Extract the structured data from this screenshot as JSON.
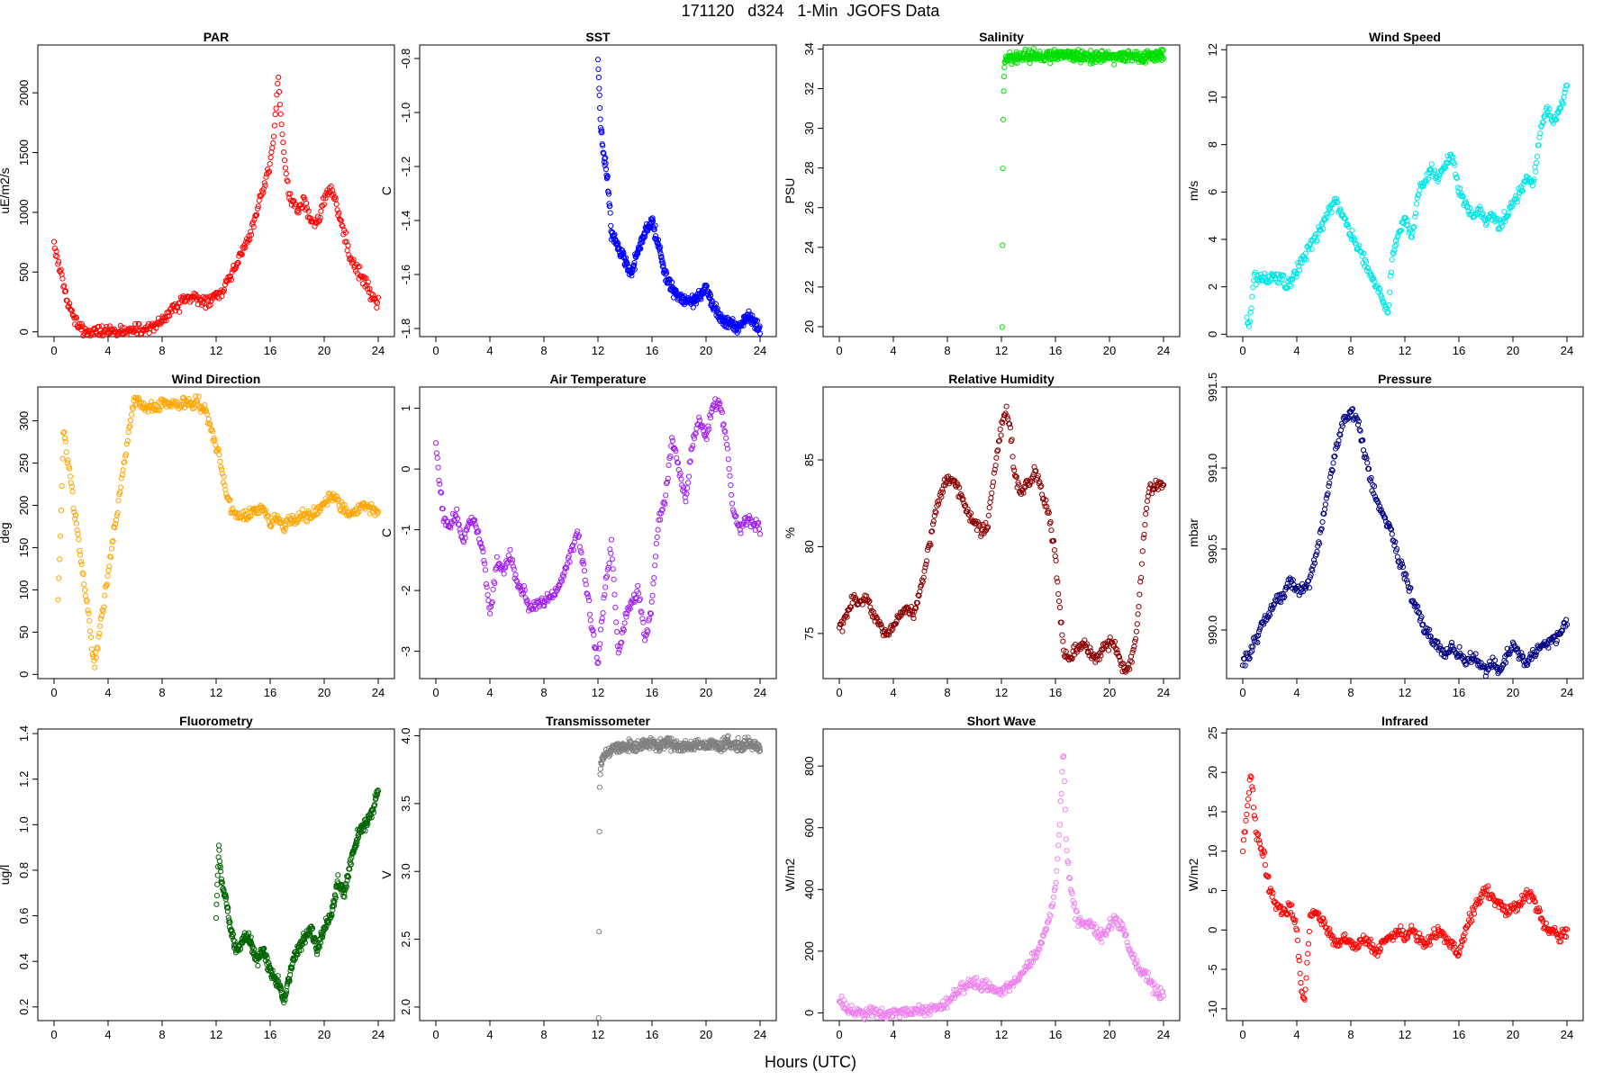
{
  "figure": {
    "title": "171120   d324   1-Min  JGOFS Data",
    "xlabel": "Hours (UTC)"
  },
  "chart_data": [
    {
      "type": "scatter",
      "title": "PAR",
      "ylabel": "uE/m2/s",
      "xlim": [
        0,
        24
      ],
      "ylim": [
        -40,
        2400
      ],
      "xticks": [
        0,
        4,
        8,
        12,
        16,
        20,
        24
      ],
      "yticks": [
        0,
        500,
        1000,
        1500,
        2000
      ],
      "color": "#ff0000",
      "x": [
        0,
        0.3,
        0.6,
        1,
        1.5,
        2,
        3,
        4,
        5,
        6,
        6.5,
        7,
        7.5,
        8,
        8.5,
        9,
        9.5,
        10,
        10.5,
        11,
        11.5,
        12,
        12.5,
        13,
        13.5,
        14,
        14.5,
        15,
        15.5,
        16,
        16.3,
        16.6,
        16.8,
        17,
        17.2,
        17.5,
        18,
        18.5,
        19,
        19.5,
        20,
        20.5,
        21,
        21.5,
        22,
        22.5,
        23,
        23.5,
        24
      ],
      "y": [
        720,
        600,
        450,
        250,
        100,
        30,
        5,
        5,
        5,
        10,
        20,
        40,
        60,
        80,
        150,
        200,
        250,
        300,
        280,
        250,
        260,
        300,
        350,
        450,
        550,
        700,
        800,
        1000,
        1200,
        1400,
        1700,
        2100,
        1800,
        1500,
        1300,
        1100,
        1000,
        1100,
        950,
        900,
        1100,
        1200,
        1000,
        800,
        600,
        500,
        450,
        300,
        250
      ]
    },
    {
      "type": "scatter",
      "title": "SST",
      "ylabel": "C",
      "xlim": [
        0,
        24
      ],
      "ylim": [
        -1.83,
        -0.75
      ],
      "xticks": [
        0,
        4,
        8,
        12,
        16,
        20,
        24
      ],
      "yticks": [
        -0.8,
        -1.0,
        -1.2,
        -1.4,
        -1.6,
        -1.8
      ],
      "color": "#0000ff",
      "x": [
        12,
        12.2,
        12.4,
        12.6,
        12.8,
        13,
        13.5,
        14,
        14.5,
        15,
        15.5,
        16,
        16.5,
        17,
        17.5,
        18,
        18.5,
        19,
        19.5,
        20,
        20.5,
        21,
        21.5,
        22,
        22.5,
        23,
        23.5,
        24
      ],
      "y": [
        -0.8,
        -1.05,
        -1.15,
        -1.2,
        -1.3,
        -1.45,
        -1.5,
        -1.55,
        -1.6,
        -1.5,
        -1.45,
        -1.4,
        -1.5,
        -1.6,
        -1.65,
        -1.68,
        -1.7,
        -1.7,
        -1.68,
        -1.65,
        -1.72,
        -1.75,
        -1.78,
        -1.78,
        -1.8,
        -1.75,
        -1.77,
        -1.8
      ]
    },
    {
      "type": "scatter",
      "title": "Salinity",
      "ylabel": "PSU",
      "xlim": [
        0,
        24
      ],
      "ylim": [
        19.5,
        34.2
      ],
      "xticks": [
        0,
        4,
        8,
        12,
        16,
        20,
        24
      ],
      "yticks": [
        20,
        22,
        24,
        26,
        28,
        30,
        32,
        34
      ],
      "color": "#00e000",
      "x": [
        12.05,
        12.1,
        12.15,
        12.2,
        12.3,
        12.5,
        13,
        14,
        15,
        16,
        17,
        18,
        19,
        20,
        21,
        22,
        23,
        24
      ],
      "y": [
        20,
        27.4,
        31.6,
        33.0,
        33.5,
        33.6,
        33.62,
        33.65,
        33.66,
        33.68,
        33.7,
        33.65,
        33.62,
        33.62,
        33.63,
        33.64,
        33.65,
        33.65
      ]
    },
    {
      "type": "scatter",
      "title": "Wind Speed",
      "ylabel": "m/s",
      "xlim": [
        0,
        24
      ],
      "ylim": [
        -0.1,
        12.2
      ],
      "xticks": [
        0,
        4,
        8,
        12,
        16,
        20,
        24
      ],
      "yticks": [
        0,
        2,
        4,
        6,
        8,
        10,
        12
      ],
      "color": "#00e5e5",
      "x": [
        0.3,
        0.5,
        0.8,
        3,
        3.2,
        6,
        6.8,
        10.8,
        11,
        11.3,
        12,
        12.5,
        13,
        13.5,
        14,
        14.5,
        15,
        15.5,
        16,
        16.5,
        17,
        17.5,
        18,
        18.5,
        19,
        19.5,
        20,
        20.5,
        21,
        21.5,
        22,
        22.5,
        23,
        23.5,
        24
      ],
      "y": [
        0.7,
        0.4,
        2.3,
        2.4,
        1.9,
        4.7,
        5.7,
        0.9,
        3.0,
        3.8,
        5.0,
        4.0,
        6.0,
        6.5,
        7.0,
        6.5,
        7.2,
        7.5,
        6.0,
        5.5,
        5.0,
        5.2,
        4.8,
        5.0,
        4.5,
        5.0,
        5.5,
        6.0,
        6.5,
        6.2,
        8.5,
        9.5,
        9.0,
        9.5,
        10.5
      ]
    },
    {
      "type": "scatter",
      "title": "Wind Direction",
      "ylabel": "deg",
      "xlim": [
        0,
        24
      ],
      "ylim": [
        -5,
        340
      ],
      "xticks": [
        0,
        4,
        8,
        12,
        16,
        20,
        24
      ],
      "yticks": [
        0,
        50,
        100,
        150,
        200,
        250,
        300
      ],
      "color": "#ffa500",
      "x": [
        0.3,
        0.5,
        0.7,
        2.8,
        3.0,
        5.9,
        6.8,
        10.7,
        10.9,
        11.1,
        12,
        12.2,
        12.5,
        13,
        13.5,
        14,
        14.5,
        15,
        15.5,
        16,
        16.5,
        17,
        17.5,
        18,
        18.5,
        19,
        19.5,
        20,
        20.5,
        21,
        21.5,
        22,
        22.5,
        23,
        23.5,
        24
      ],
      "y": [
        87,
        178,
        293,
        37,
        10,
        327,
        316,
        323,
        310,
        318,
        270,
        265,
        230,
        200,
        190,
        185,
        190,
        195,
        200,
        180,
        185,
        175,
        180,
        185,
        190,
        185,
        195,
        200,
        210,
        205,
        195,
        190,
        195,
        200,
        195,
        190
      ]
    },
    {
      "type": "scatter",
      "title": "Air Temperature",
      "ylabel": "C",
      "xlim": [
        0,
        24
      ],
      "ylim": [
        -3.45,
        1.35
      ],
      "xticks": [
        0,
        4,
        8,
        12,
        16,
        20,
        24
      ],
      "yticks": [
        1,
        0,
        -1,
        -2,
        -3
      ],
      "color": "#a020f0",
      "x": [
        0,
        0.3,
        0.6,
        1,
        1.5,
        2,
        2.5,
        3,
        3.5,
        4,
        4.5,
        5,
        5.5,
        6,
        6.5,
        7,
        7.5,
        8,
        8.5,
        9,
        9.5,
        10,
        10.5,
        11,
        11.5,
        12,
        12.5,
        13,
        13.5,
        14,
        14.5,
        15,
        15.5,
        16,
        16.5,
        17,
        17.5,
        18,
        18.5,
        19,
        19.5,
        20,
        20.5,
        21,
        21.5,
        22,
        22.5,
        23,
        23.5,
        24
      ],
      "y": [
        0.4,
        -0.3,
        -0.8,
        -1.0,
        -0.7,
        -1.2,
        -0.8,
        -1.0,
        -1.3,
        -2.4,
        -1.5,
        -1.7,
        -1.4,
        -1.9,
        -2.0,
        -2.3,
        -2.2,
        -2.2,
        -2.1,
        -2.0,
        -1.7,
        -1.4,
        -1.0,
        -1.7,
        -2.5,
        -3.2,
        -2.0,
        -1.2,
        -3.1,
        -2.5,
        -2.2,
        -2.0,
        -2.8,
        -2.2,
        -0.8,
        -0.5,
        0.5,
        0.0,
        -0.5,
        0.4,
        0.8,
        0.5,
        1.0,
        1.1,
        0.5,
        -0.7,
        -1.0,
        -0.8,
        -0.9,
        -0.95
      ]
    },
    {
      "type": "scatter",
      "title": "Relative Humidity",
      "ylabel": "%",
      "xlim": [
        0,
        24
      ],
      "ylim": [
        72.4,
        89.2
      ],
      "xticks": [
        0,
        4,
        8,
        12,
        16,
        20,
        24
      ],
      "yticks": [
        75,
        80,
        85
      ],
      "color": "#8b0000",
      "x": [
        0,
        0.5,
        1,
        1.5,
        2,
        2.5,
        3,
        3.5,
        4,
        4.5,
        5,
        5.5,
        6,
        6.5,
        7,
        7.5,
        8,
        8.5,
        9,
        9.5,
        10,
        10.5,
        11,
        11.5,
        12,
        12.3,
        12.6,
        13,
        13.5,
        14,
        14.5,
        15,
        15.5,
        16,
        16.3,
        16.6,
        17,
        17.5,
        18,
        18.5,
        19,
        19.5,
        20,
        20.5,
        21,
        21.5,
        22,
        22.3,
        22.6,
        23,
        23.5,
        24
      ],
      "y": [
        75.2,
        76.0,
        77.0,
        76.8,
        77.0,
        76.0,
        75.5,
        74.8,
        75.5,
        76.2,
        76.5,
        76.0,
        77.5,
        79.5,
        81.5,
        83.0,
        84.0,
        83.8,
        83.0,
        82.0,
        81.5,
        80.8,
        81.5,
        84.5,
        86.8,
        88.0,
        87.0,
        84.0,
        83.0,
        83.8,
        84.5,
        83.0,
        82.0,
        79.5,
        76.5,
        74.0,
        73.5,
        74.0,
        74.5,
        74.0,
        73.5,
        74.0,
        74.5,
        74.0,
        73.0,
        73.0,
        75.0,
        78.0,
        81.5,
        83.5,
        83.5,
        83.5
      ]
    },
    {
      "type": "scatter",
      "title": "Pressure",
      "ylabel": "mbar",
      "xlim": [
        0,
        24
      ],
      "ylim": [
        989.7,
        991.5
      ],
      "xticks": [
        0,
        4,
        8,
        12,
        16,
        20,
        24
      ],
      "yticks": [
        990.0,
        990.5,
        991.0,
        991.5
      ],
      "color": "#000080",
      "x": [
        0,
        0.5,
        1,
        1.5,
        2,
        2.5,
        3,
        3.5,
        4,
        4.5,
        5,
        5.5,
        6,
        6.5,
        7,
        7.5,
        8,
        8.5,
        9,
        9.5,
        10,
        10.5,
        11,
        11.5,
        12,
        12.5,
        13,
        13.5,
        14,
        14.5,
        15,
        15.5,
        16,
        16.5,
        17,
        17.5,
        18,
        18.5,
        19,
        19.5,
        20,
        20.5,
        21,
        21.5,
        22,
        22.5,
        23,
        23.5,
        24
      ],
      "y": [
        989.8,
        989.85,
        989.95,
        990.05,
        990.1,
        990.2,
        990.2,
        990.3,
        990.25,
        990.25,
        990.3,
        990.5,
        990.7,
        990.95,
        991.15,
        991.3,
        991.35,
        991.3,
        991.1,
        990.9,
        990.8,
        990.7,
        990.6,
        990.45,
        990.35,
        990.2,
        990.1,
        990.0,
        989.95,
        989.9,
        989.85,
        989.9,
        989.85,
        989.8,
        989.85,
        989.78,
        989.75,
        989.8,
        989.75,
        989.85,
        989.9,
        989.85,
        989.8,
        989.85,
        989.9,
        989.9,
        989.95,
        989.95,
        990.05
      ]
    },
    {
      "type": "scatter",
      "title": "Fluorometry",
      "ylabel": "ug/l",
      "xlim": [
        0,
        24
      ],
      "ylim": [
        0.14,
        1.42
      ],
      "xticks": [
        0,
        4,
        8,
        12,
        16,
        20,
        24
      ],
      "yticks": [
        0.2,
        0.4,
        0.6,
        0.8,
        1.0,
        1.2,
        1.4
      ],
      "color": "#006400",
      "x": [
        12,
        12.2,
        12.4,
        12.6,
        12.8,
        13,
        13.5,
        14,
        14.5,
        15,
        15.5,
        16,
        16.5,
        16.8,
        17,
        17.3,
        17.6,
        18,
        18.5,
        19,
        19.5,
        20,
        20.5,
        21,
        21.5,
        22,
        22.5,
        23,
        23.5,
        24
      ],
      "y": [
        0.6,
        0.9,
        0.75,
        0.7,
        0.65,
        0.55,
        0.45,
        0.5,
        0.5,
        0.4,
        0.45,
        0.35,
        0.32,
        0.28,
        0.22,
        0.3,
        0.38,
        0.45,
        0.5,
        0.55,
        0.45,
        0.55,
        0.6,
        0.75,
        0.7,
        0.85,
        0.95,
        1.0,
        1.05,
        1.15
      ]
    },
    {
      "type": "scatter",
      "title": "Transmissometer",
      "ylabel": "V",
      "xlim": [
        0,
        24
      ],
      "ylim": [
        1.9,
        4.05
      ],
      "xticks": [
        0,
        4,
        8,
        12,
        16,
        20,
        24
      ],
      "yticks": [
        2.0,
        2.5,
        3.0,
        3.5,
        4.0
      ],
      "color": "#808080",
      "x": [
        12.05,
        12.08,
        12.1,
        12.12,
        12.15,
        12.2,
        12.3,
        12.5,
        13,
        13.5,
        14,
        14.5,
        15,
        15.5,
        16,
        16.5,
        17,
        17.5,
        18,
        18.5,
        19,
        19.5,
        20,
        20.5,
        21,
        21.5,
        22,
        22.5,
        23,
        23.5,
        24
      ],
      "y": [
        1.93,
        2.63,
        3.16,
        3.54,
        3.72,
        3.78,
        3.82,
        3.86,
        3.9,
        3.92,
        3.91,
        3.94,
        3.92,
        3.93,
        3.95,
        3.92,
        3.96,
        3.94,
        3.92,
        3.92,
        3.93,
        3.94,
        3.93,
        3.94,
        3.92,
        3.95,
        3.93,
        3.92,
        3.94,
        3.93,
        3.92
      ]
    },
    {
      "type": "scatter",
      "title": "Short Wave",
      "ylabel": "W/m2",
      "xlim": [
        0,
        24
      ],
      "ylim": [
        -25,
        920
      ],
      "xticks": [
        0,
        4,
        8,
        12,
        16,
        20,
        24
      ],
      "yticks": [
        0,
        200,
        400,
        600,
        800
      ],
      "color": "#ee82ee",
      "x": [
        0,
        0.3,
        0.6,
        1,
        1.5,
        2,
        3,
        4,
        5,
        6,
        6.5,
        7,
        7.5,
        8,
        8.5,
        9,
        9.5,
        10,
        10.5,
        11,
        11.5,
        12,
        12.5,
        13,
        13.5,
        14,
        14.5,
        15,
        15.5,
        16,
        16.3,
        16.6,
        16.8,
        17,
        17.2,
        17.5,
        18,
        18.5,
        19,
        19.5,
        20,
        20.5,
        21,
        21.5,
        22,
        22.5,
        23,
        23.5,
        24
      ],
      "y": [
        40,
        30,
        15,
        5,
        0,
        0,
        0,
        0,
        0,
        5,
        10,
        15,
        20,
        35,
        60,
        80,
        95,
        100,
        90,
        80,
        75,
        70,
        80,
        100,
        130,
        160,
        190,
        230,
        300,
        400,
        600,
        850,
        550,
        450,
        380,
        320,
        280,
        300,
        260,
        250,
        280,
        300,
        280,
        200,
        160,
        130,
        100,
        70,
        60
      ]
    },
    {
      "type": "scatter",
      "title": "Infrared",
      "ylabel": "W/m2",
      "xlim": [
        0,
        24
      ],
      "ylim": [
        -11.5,
        25.5
      ],
      "xticks": [
        0,
        4,
        8,
        12,
        16,
        20,
        24
      ],
      "yticks": [
        -10,
        -5,
        0,
        5,
        10,
        15,
        20,
        25
      ],
      "color": "#ff0000",
      "x": [
        0,
        0.3,
        0.6,
        1,
        1.5,
        2,
        2.5,
        3,
        3.5,
        4,
        4.3,
        4.6,
        5,
        5.5,
        6,
        6.5,
        7,
        7.5,
        8,
        8.5,
        9,
        9.5,
        10,
        10.5,
        11,
        11.5,
        12,
        12.5,
        13,
        13.5,
        14,
        14.5,
        15,
        15.5,
        16,
        16.5,
        17,
        17.5,
        18,
        18.5,
        19,
        19.5,
        20,
        20.5,
        21,
        21.5,
        22,
        22.5,
        23,
        23.5,
        24
      ],
      "y": [
        10,
        15,
        20,
        12,
        10,
        5,
        3,
        2,
        3,
        0,
        -7,
        -9,
        2,
        2,
        1,
        -1,
        -2,
        -1,
        -2,
        -2,
        -1,
        -2,
        -3,
        -1,
        -1,
        0,
        -1,
        0,
        -1,
        -2,
        -1,
        0,
        -1,
        -2,
        -3,
        0,
        2,
        4,
        5,
        4,
        3,
        2,
        3,
        3,
        5,
        4,
        2,
        0,
        0,
        -1,
        0
      ]
    }
  ]
}
